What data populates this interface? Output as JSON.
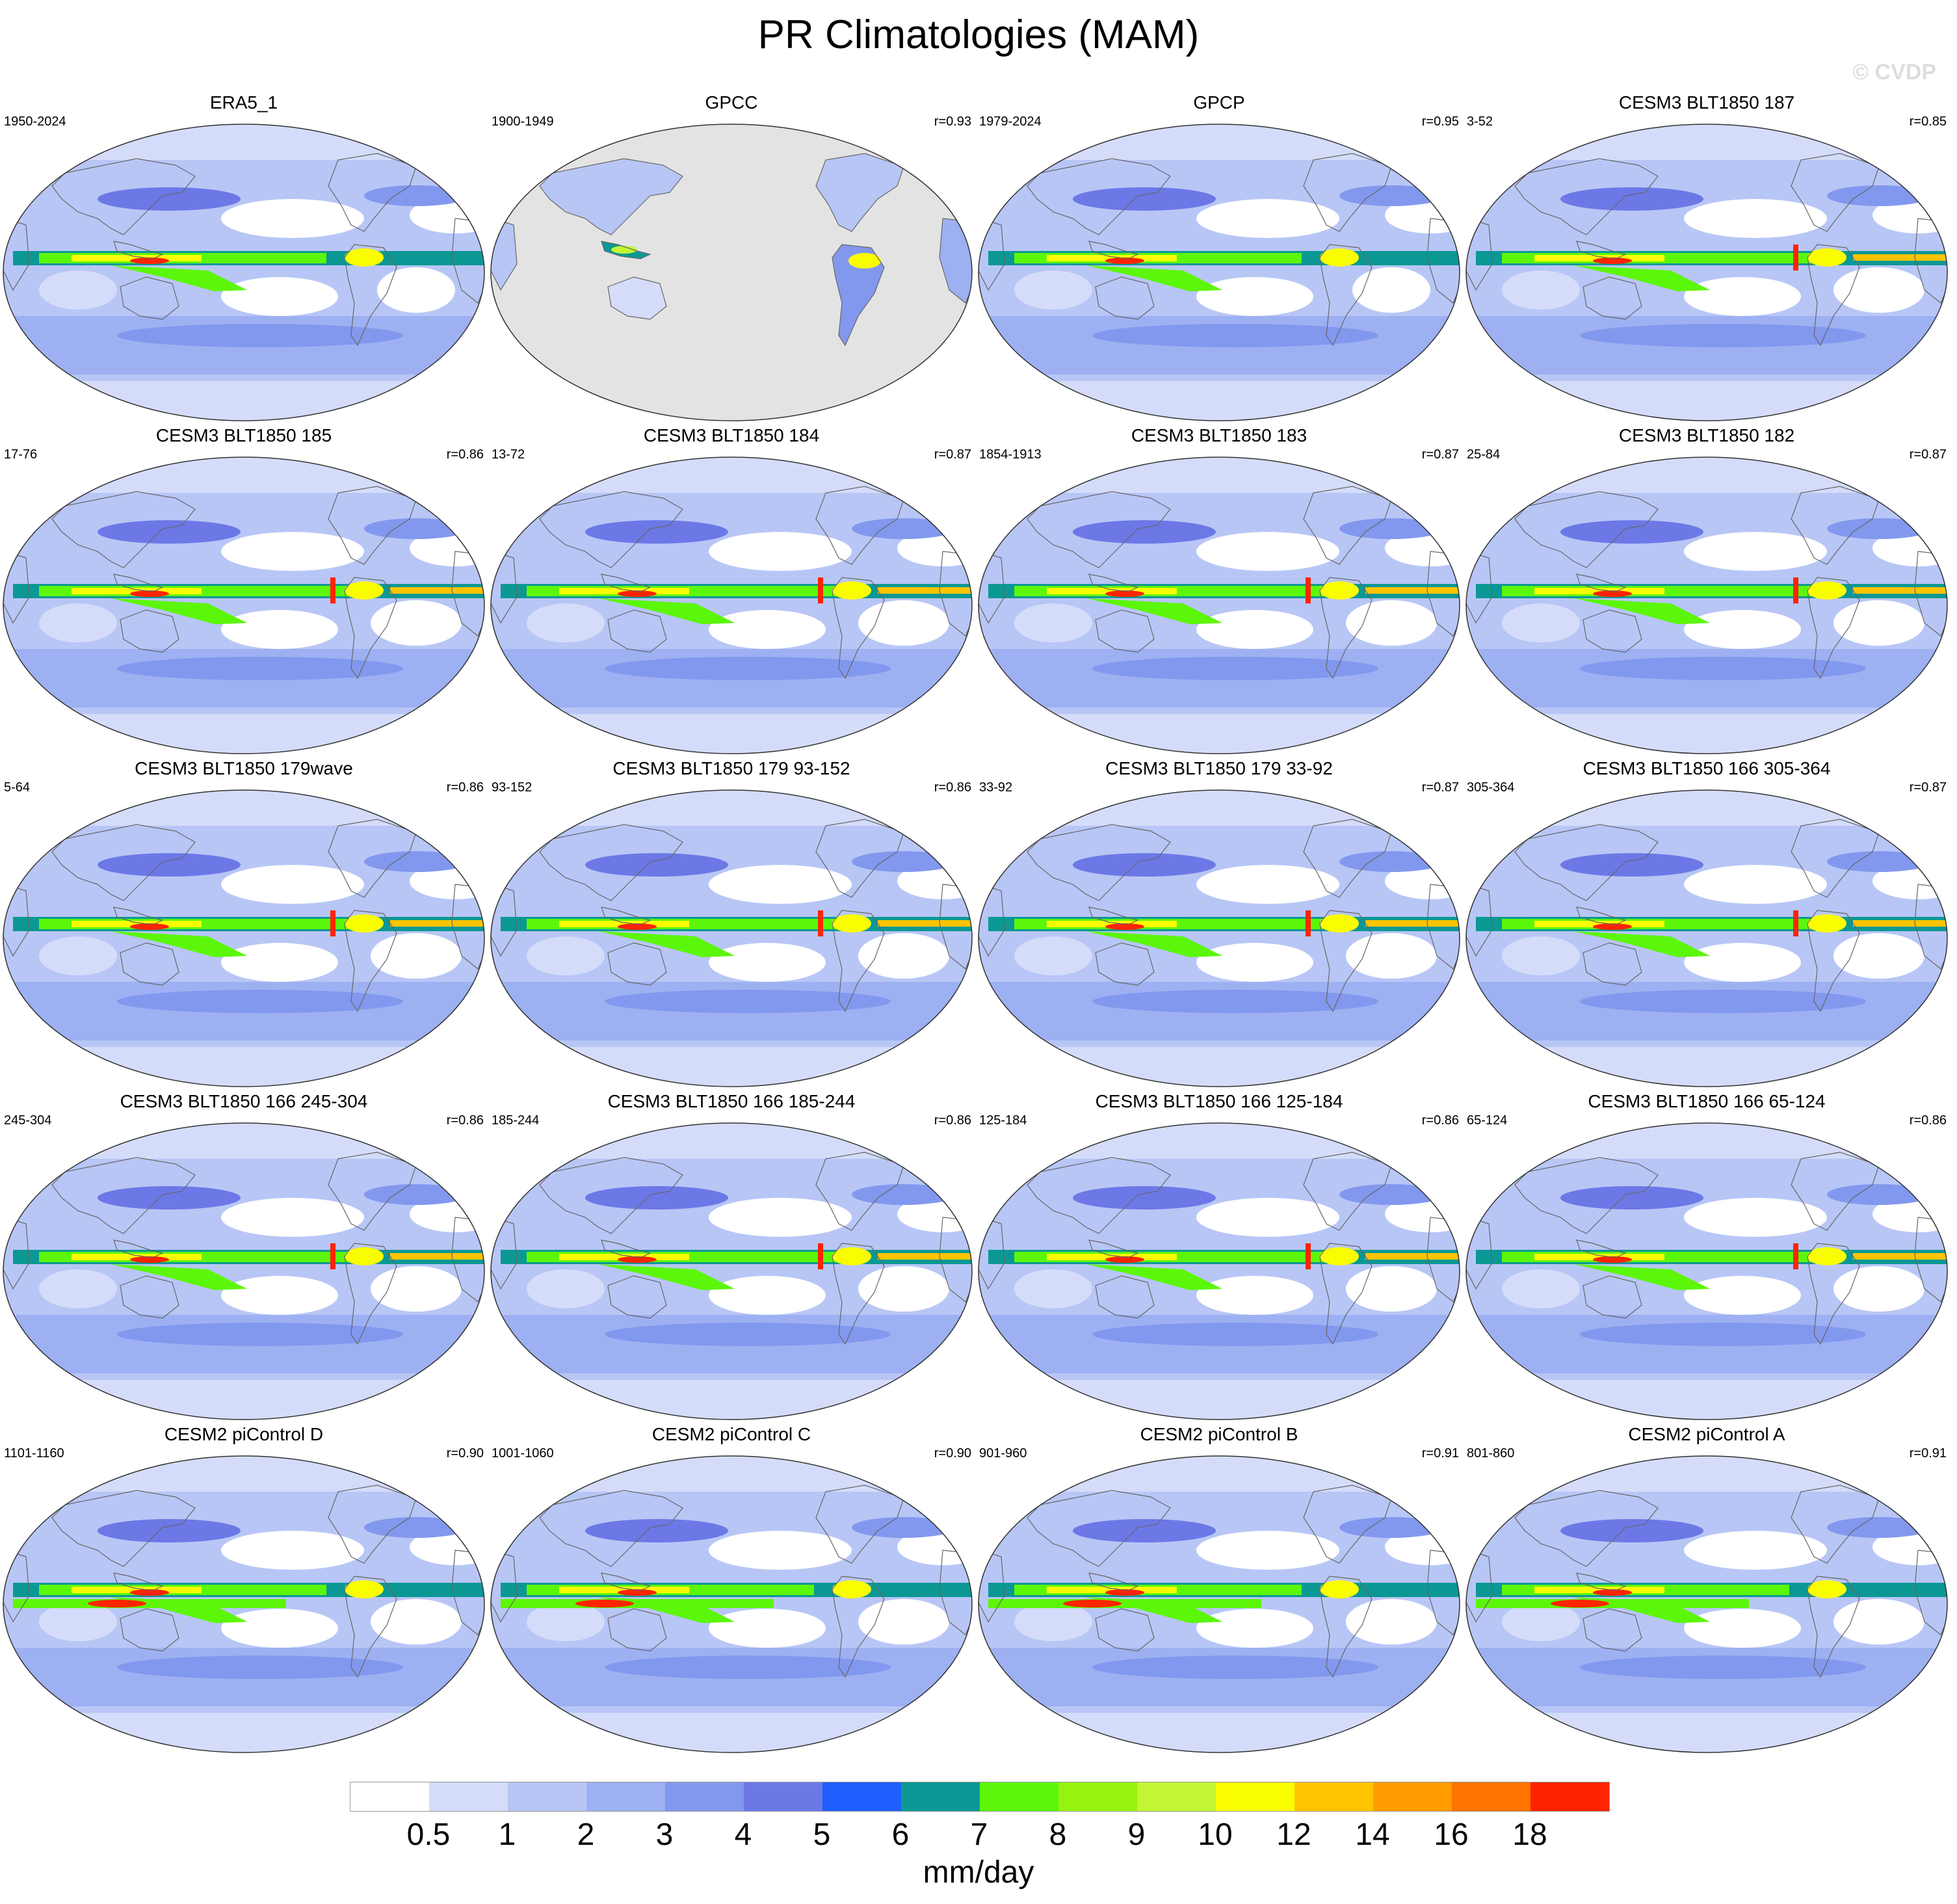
{
  "title": "PR Climatologies (MAM)",
  "watermark": "© CVDP",
  "units": "mm/day",
  "colorbar": {
    "levels": [
      "0.5",
      "1",
      "2",
      "3",
      "4",
      "5",
      "6",
      "7",
      "8",
      "9",
      "10",
      "12",
      "14",
      "16",
      "18"
    ],
    "colors": [
      "#ffffff",
      "#d4dcfa",
      "#b8c6f6",
      "#9db0f2",
      "#8298ee",
      "#6c78e6",
      "#1f5fff",
      "#0b9894",
      "#5cf60a",
      "#96f20e",
      "#c3f534",
      "#fafc00",
      "#ffc400",
      "#ff9c00",
      "#ff7400",
      "#ff2400"
    ]
  },
  "panels": [
    {
      "title": "ERA5_1",
      "years": "1950-2024",
      "corr": "",
      "type": "reanalysis"
    },
    {
      "title": "GPCC",
      "years": "1900-1949",
      "corr": "r=0.93",
      "type": "land"
    },
    {
      "title": "GPCP",
      "years": "1979-2024",
      "corr": "r=0.95",
      "type": "obs"
    },
    {
      "title": "CESM3 BLT1850 187",
      "years": "3-52",
      "corr": "r=0.85",
      "type": "model"
    },
    {
      "title": "CESM3 BLT1850 185",
      "years": "17-76",
      "corr": "r=0.86",
      "type": "model"
    },
    {
      "title": "CESM3 BLT1850 184",
      "years": "13-72",
      "corr": "r=0.87",
      "type": "model"
    },
    {
      "title": "CESM3 BLT1850 183",
      "years": "1854-1913",
      "corr": "r=0.87",
      "type": "model"
    },
    {
      "title": "CESM3 BLT1850 182",
      "years": "25-84",
      "corr": "r=0.87",
      "type": "model"
    },
    {
      "title": "CESM3 BLT1850 179wave",
      "years": "5-64",
      "corr": "r=0.86",
      "type": "model"
    },
    {
      "title": "CESM3 BLT1850 179 93-152",
      "years": "93-152",
      "corr": "r=0.86",
      "type": "model"
    },
    {
      "title": "CESM3 BLT1850 179 33-92",
      "years": "33-92",
      "corr": "r=0.87",
      "type": "model"
    },
    {
      "title": "CESM3 BLT1850 166 305-364",
      "years": "305-364",
      "corr": "r=0.87",
      "type": "model"
    },
    {
      "title": "CESM3 BLT1850 166 245-304",
      "years": "245-304",
      "corr": "r=0.86",
      "type": "model"
    },
    {
      "title": "CESM3 BLT1850 166 185-244",
      "years": "185-244",
      "corr": "r=0.86",
      "type": "model"
    },
    {
      "title": "CESM3 BLT1850 166 125-184",
      "years": "125-184",
      "corr": "r=0.86",
      "type": "model"
    },
    {
      "title": "CESM3 BLT1850 166 65-124",
      "years": "65-124",
      "corr": "r=0.86",
      "type": "model"
    },
    {
      "title": "CESM2 piControl D",
      "years": "1101-1160",
      "corr": "r=0.90",
      "type": "cesm2"
    },
    {
      "title": "CESM2 piControl C",
      "years": "1001-1060",
      "corr": "r=0.90",
      "type": "cesm2"
    },
    {
      "title": "CESM2 piControl B",
      "years": "901-960",
      "corr": "r=0.91",
      "type": "cesm2"
    },
    {
      "title": "CESM2 piControl A",
      "years": "801-860",
      "corr": "r=0.91",
      "type": "cesm2"
    }
  ]
}
